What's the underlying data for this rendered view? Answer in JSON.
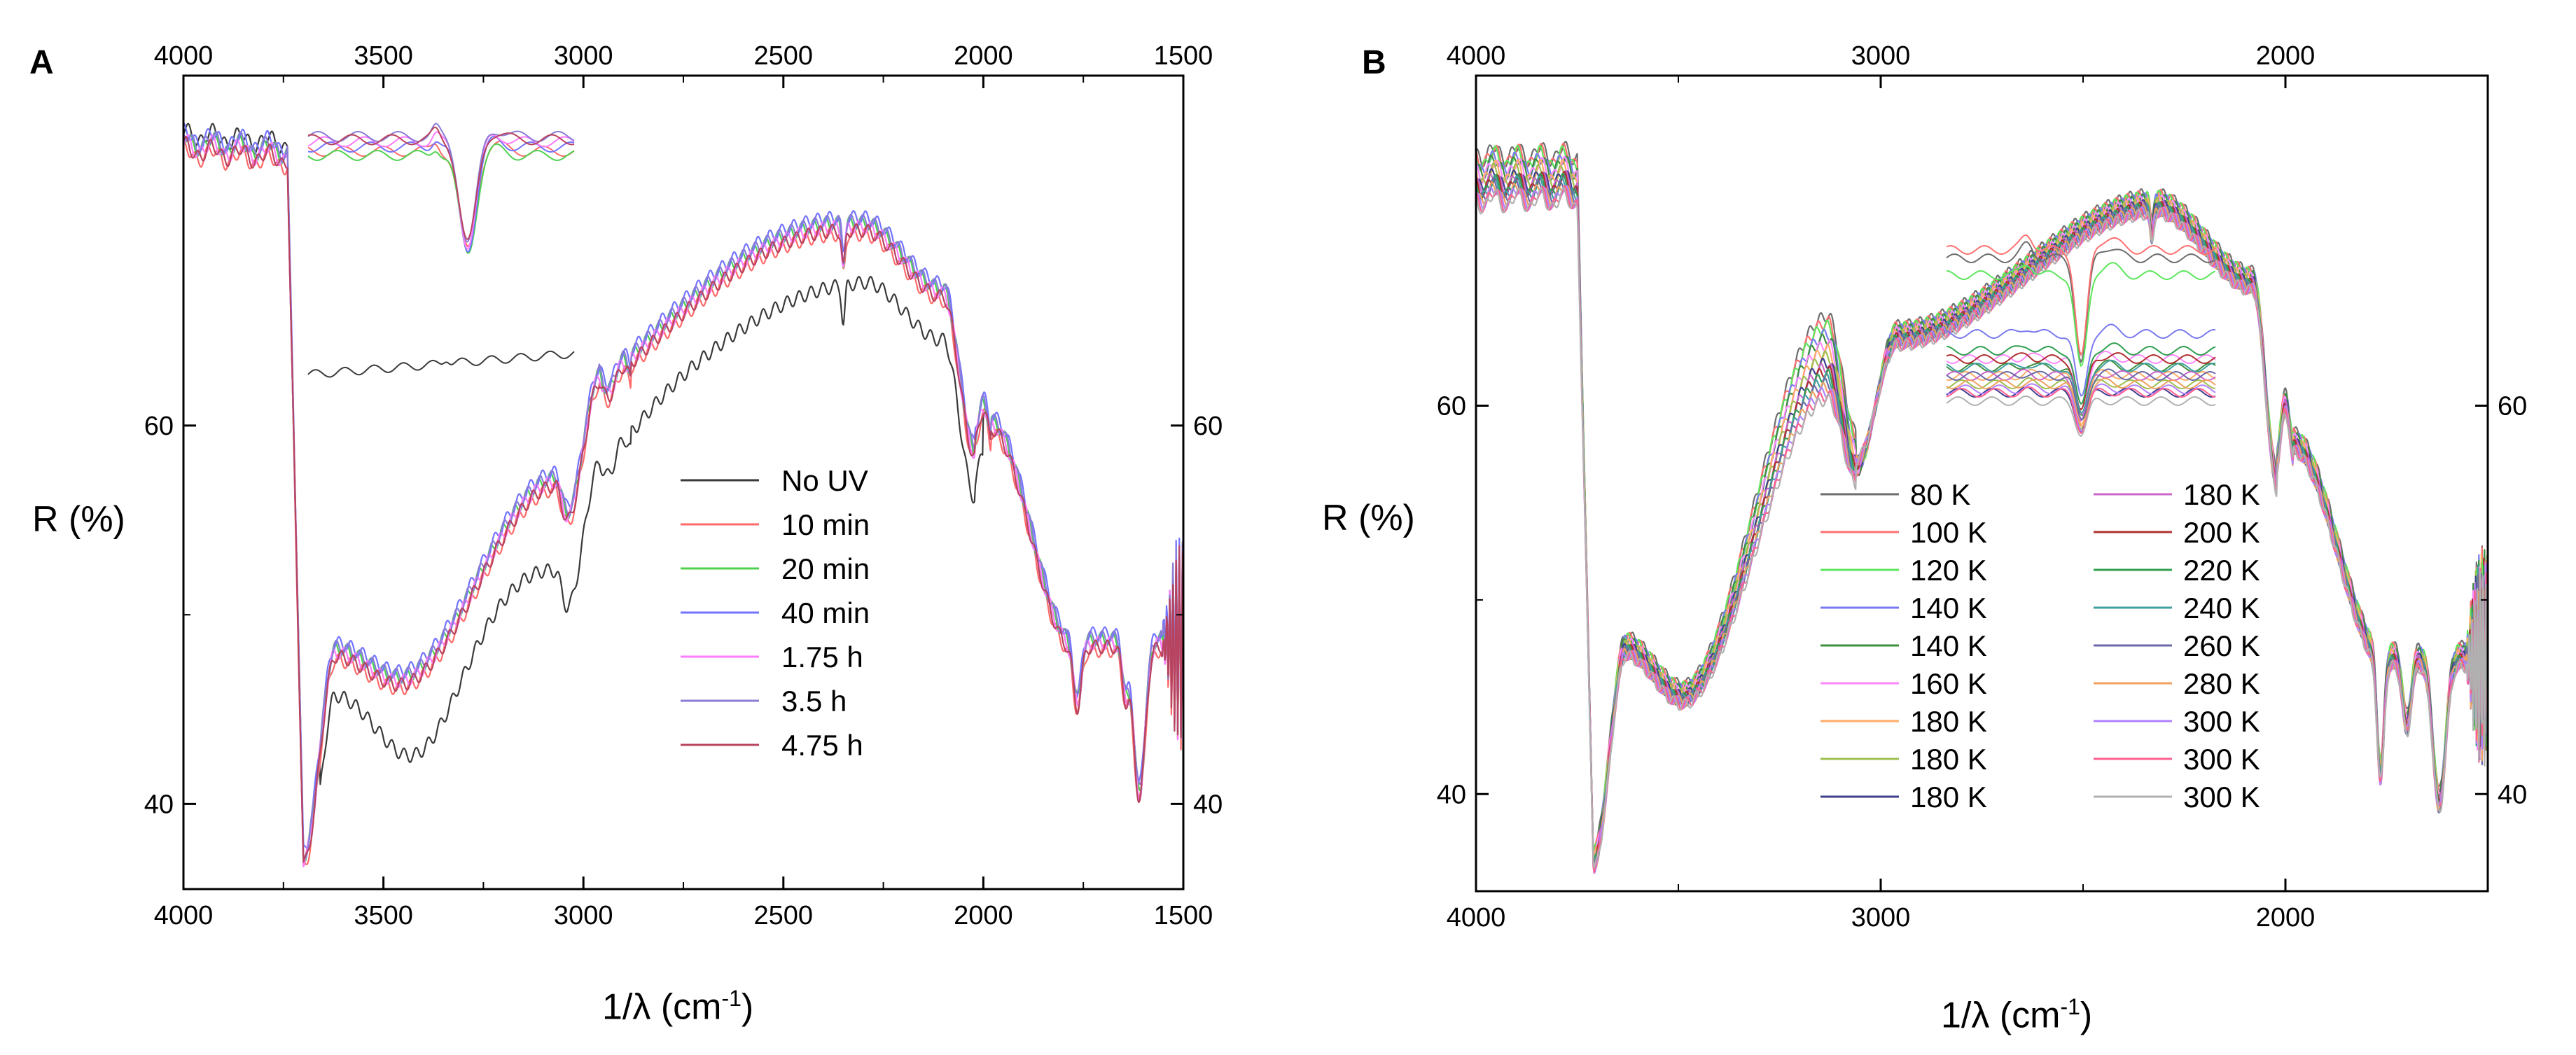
{
  "figure": {
    "panels": [
      {
        "letter": "A",
        "ylabel": "R (%)",
        "xlabel_main": "1/λ (cm",
        "xlabel_sup": "-1",
        "xlabel_close": ")"
      },
      {
        "letter": "B",
        "ylabel": "R (%)",
        "xlabel_main": "1/λ (cm",
        "xlabel_sup": "-1",
        "xlabel_close": ")"
      }
    ]
  },
  "chart_data": [
    {
      "id": "A",
      "type": "line",
      "title": "",
      "xlabel": "1/λ (cm-1)",
      "ylabel": "R (%)",
      "xlim": [
        4000,
        1500
      ],
      "ylim": [
        35.5,
        78.5
      ],
      "x_ticks": [
        4000,
        3500,
        3000,
        2500,
        2000,
        1500
      ],
      "y_ticks": [
        40,
        60
      ],
      "legend_position": "center-right",
      "legend_columns": 1,
      "series": [
        {
          "name": "No UV",
          "color": "#3a3a3a",
          "shape": "noUV",
          "inset_level": 0
        },
        {
          "name": "10 min",
          "color": "#ff6a6a",
          "shape": "uv",
          "offset": -0.4,
          "inset_level": 0.86
        },
        {
          "name": "20 min",
          "color": "#4fd24f",
          "shape": "uv",
          "offset": 0.2,
          "inset_level": 0.82
        },
        {
          "name": "40 min",
          "color": "#7373ff",
          "shape": "uv",
          "offset": 0.5,
          "inset_level": 0.9
        },
        {
          "name": "1.75 h",
          "color": "#ff7cff",
          "shape": "uv",
          "offset": 0.0,
          "inset_level": 0.95
        },
        {
          "name": "3.5 h",
          "color": "#8a7dd6",
          "shape": "uv",
          "offset": 0.3,
          "inset_level": 1.0
        },
        {
          "name": "4.75 h",
          "color": "#b8435f",
          "shape": "uv",
          "offset": -0.2,
          "inset_level": 0.97
        }
      ]
    },
    {
      "id": "B",
      "type": "line",
      "title": "",
      "xlabel": "1/λ (cm-1)",
      "ylabel": "R (%)",
      "xlim": [
        4000,
        1500
      ],
      "ylim": [
        35,
        77
      ],
      "x_ticks": [
        4000,
        3000,
        2000
      ],
      "y_ticks": [
        40,
        60
      ],
      "legend_position": "center",
      "legend_columns": 2,
      "series": [
        {
          "name": "80 K",
          "color": "#6d6d6d",
          "shift": 2.5,
          "inset_level": 0.9
        },
        {
          "name": "100 K",
          "color": "#ff7070",
          "shift": 2.2,
          "inset_level": 0.95
        },
        {
          "name": "120 K",
          "color": "#5ce65c",
          "shift": 2.0,
          "inset_level": 0.8
        },
        {
          "name": "140 K",
          "color": "#7a7af0",
          "shift": 1.6,
          "inset_level": 0.45
        },
        {
          "name": "140 K",
          "color": "#3f8f3f",
          "shift": 1.4,
          "inset_level": 0.25
        },
        {
          "name": "160 K",
          "color": "#ff88ff",
          "shift": 1.1,
          "inset_level": 0.3
        },
        {
          "name": "180 K",
          "color": "#ffad66",
          "shift": 0.8,
          "inset_level": 0.2
        },
        {
          "name": "180 K",
          "color": "#9fbf4f",
          "shift": 0.5,
          "inset_level": 0.15
        },
        {
          "name": "180 K",
          "color": "#3f3f8f",
          "shift": 0.2,
          "inset_level": 0.1
        },
        {
          "name": "180 K",
          "color": "#cc66cc",
          "shift": 0.0,
          "inset_level": 0.2
        },
        {
          "name": "200 K",
          "color": "#b03030",
          "shift": -0.2,
          "inset_level": 0.3
        },
        {
          "name": "220 K",
          "color": "#2f9f4f",
          "shift": -0.4,
          "inset_level": 0.35
        },
        {
          "name": "240 K",
          "color": "#40a0a0",
          "shift": -0.6,
          "inset_level": 0.25
        },
        {
          "name": "260 K",
          "color": "#6a6aa8",
          "shift": -0.8,
          "inset_level": 0.2
        },
        {
          "name": "280 K",
          "color": "#f0a060",
          "shift": -1.0,
          "inset_level": 0.15
        },
        {
          "name": "300 K",
          "color": "#b080ff",
          "shift": -1.2,
          "inset_level": 0.12
        },
        {
          "name": "300 K",
          "color": "#ff6090",
          "shift": -1.4,
          "inset_level": 0.1
        },
        {
          "name": "300 K",
          "color": "#b0b0b0",
          "shift": -1.6,
          "inset_level": 0.05
        }
      ]
    }
  ]
}
